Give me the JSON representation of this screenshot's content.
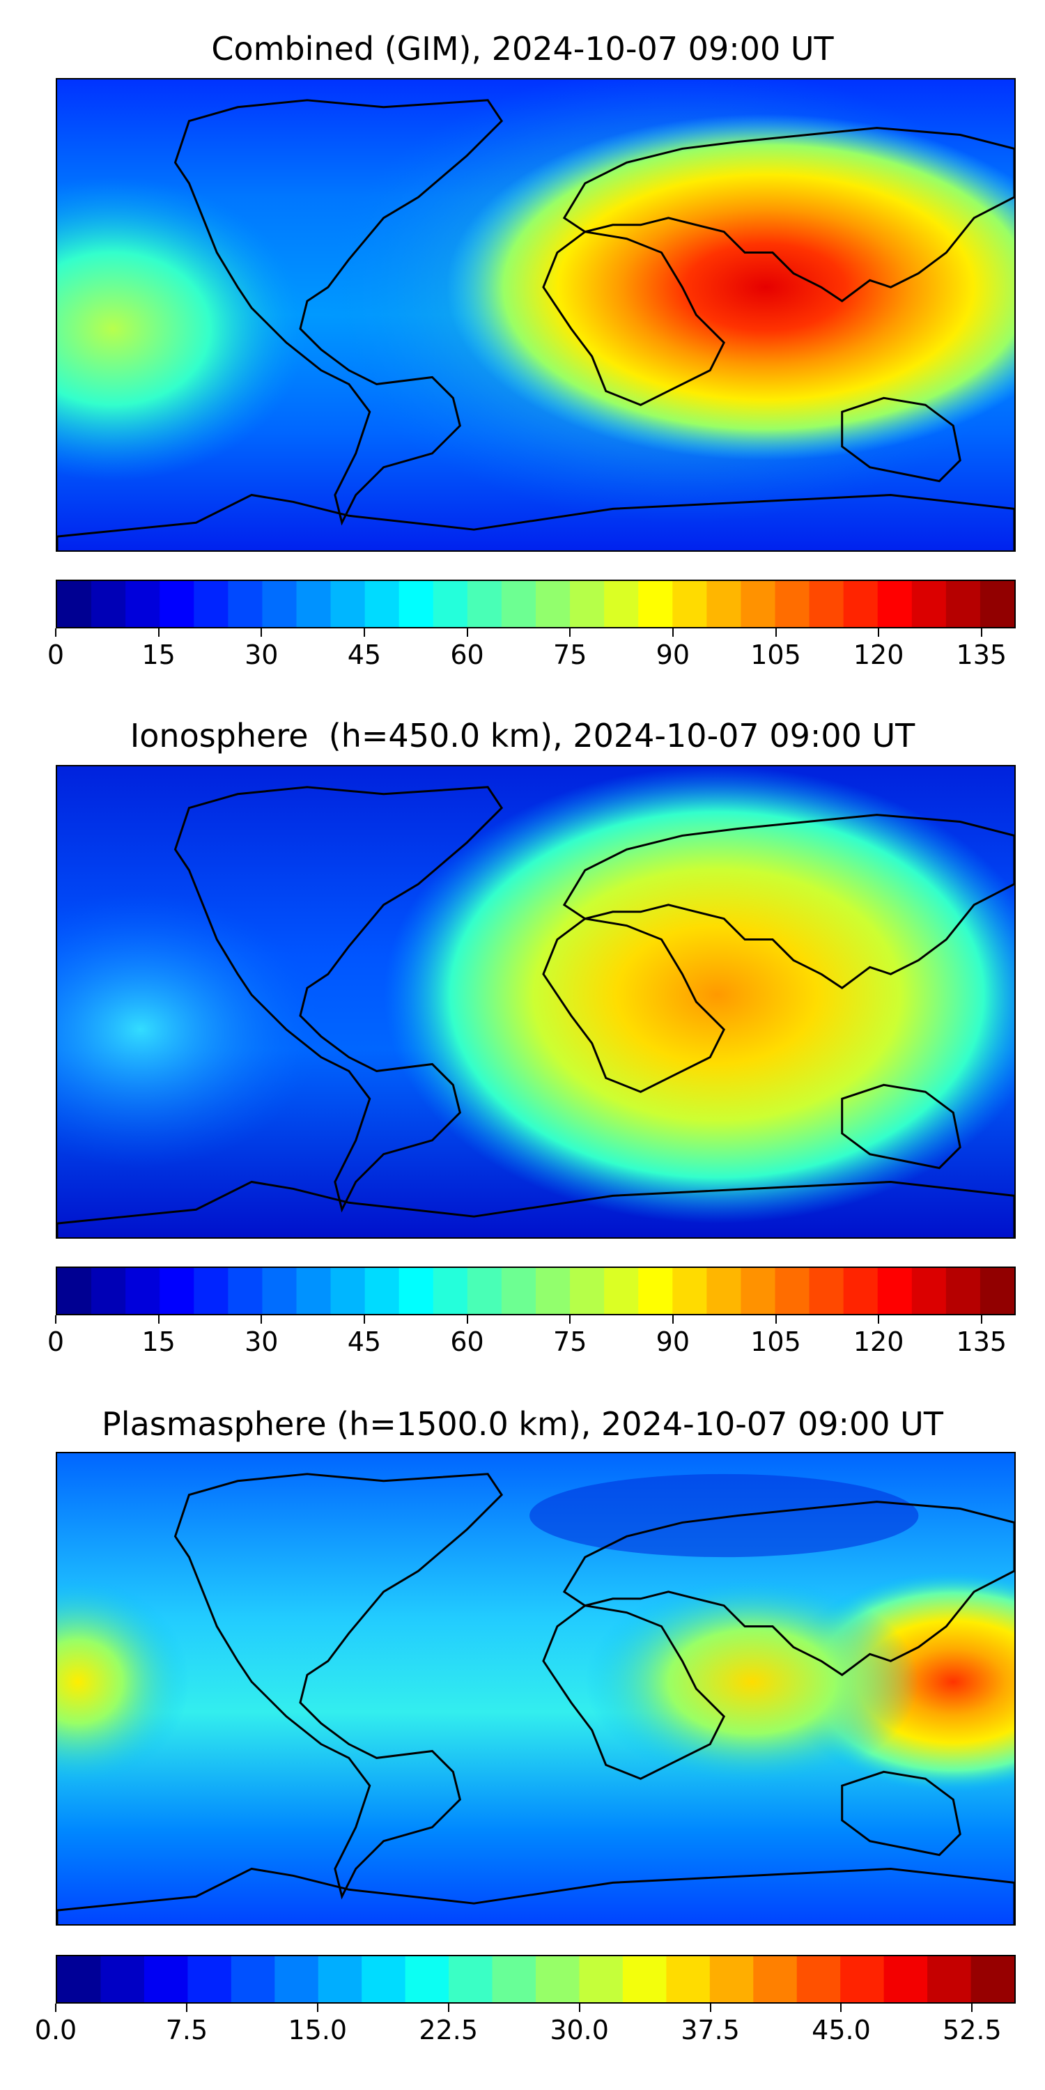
{
  "panels": [
    {
      "title": "Combined (GIM), 2024-10-07 09:00 UT",
      "colorbar": {
        "min": 0,
        "max": 140,
        "levels": 28,
        "colormap": "jet",
        "ticks": [
          "0",
          "15",
          "30",
          "45",
          "60",
          "75",
          "90",
          "105",
          "120",
          "135"
        ],
        "tick_values": [
          0,
          15,
          30,
          45,
          60,
          75,
          90,
          105,
          120,
          135
        ]
      },
      "field_features": [
        "peak-red over Arabian Sea / India / Indian Ocean",
        "secondary maximum mid-Pacific",
        "low values at high latitudes"
      ]
    },
    {
      "title": "Ionosphere  (h=450.0 km), 2024-10-07 09:00 UT",
      "colorbar": {
        "min": 0,
        "max": 140,
        "levels": 28,
        "colormap": "jet",
        "ticks": [
          "0",
          "15",
          "30",
          "45",
          "60",
          "75",
          "90",
          "105",
          "120",
          "135"
        ],
        "tick_values": [
          0,
          15,
          30,
          45,
          60,
          75,
          90,
          105,
          120,
          135
        ]
      },
      "field_features": [
        "orange maximum over Arabia / India",
        "yellow-green over Africa",
        "blue over Americas"
      ]
    },
    {
      "title": "Plasmasphere (h=1500.0 km), 2024-10-07 09:00 UT",
      "colorbar": {
        "min": 0,
        "max": 55,
        "levels": 22,
        "colormap": "jet",
        "ticks": [
          "0.0",
          "7.5",
          "15.0",
          "22.5",
          "30.0",
          "37.5",
          "45.0",
          "52.5"
        ],
        "tick_values": [
          0,
          7.5,
          15,
          22.5,
          30,
          37.5,
          45,
          52.5
        ]
      },
      "field_features": [
        "maximum east of Philippines / New Guinea",
        "secondary maximum over Pacific dateline",
        "band of higher values across tropics"
      ]
    }
  ]
}
